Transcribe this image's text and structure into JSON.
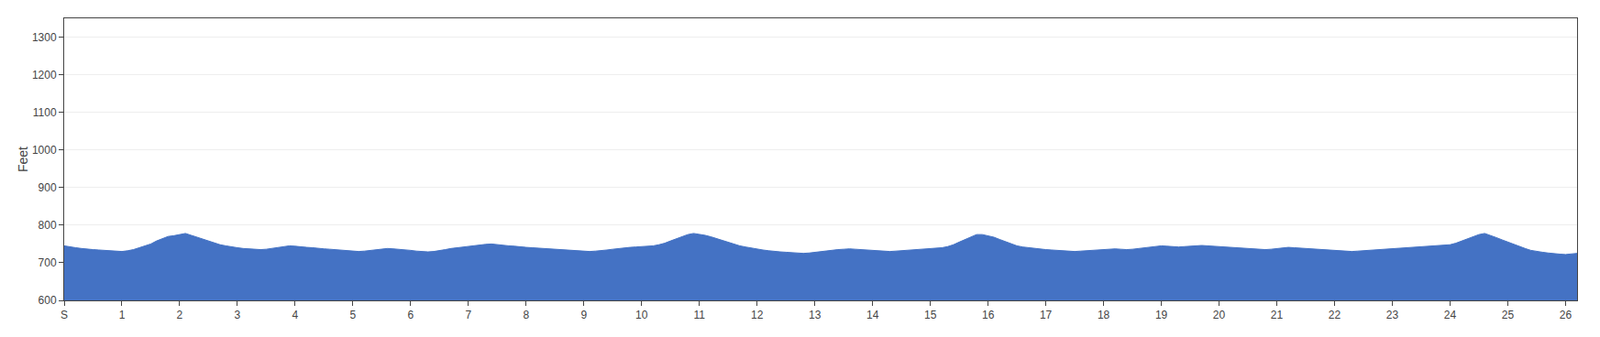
{
  "chart_data": {
    "type": "area",
    "ylabel": "Feet",
    "color": "#4472c4",
    "grid": "y",
    "xlim": [
      0,
      26.2
    ],
    "xticks": [
      {
        "value": 0,
        "label": "S"
      },
      1,
      2,
      3,
      4,
      5,
      6,
      7,
      8,
      9,
      10,
      11,
      12,
      13,
      14,
      15,
      16,
      17,
      18,
      19,
      20,
      21,
      22,
      23,
      24,
      25,
      26
    ],
    "ylim": [
      600,
      1350
    ],
    "yticks": [
      600,
      700,
      800,
      900,
      1000,
      1100,
      1200,
      1300
    ],
    "x": [
      0.0,
      0.1,
      0.2,
      0.3,
      0.4,
      0.5,
      0.6,
      0.7,
      0.8,
      0.9,
      1.0,
      1.1,
      1.2,
      1.3,
      1.4,
      1.5,
      1.6,
      1.7,
      1.8,
      1.9,
      2.0,
      2.1,
      2.2,
      2.3,
      2.4,
      2.5,
      2.6,
      2.7,
      2.8,
      2.9,
      3.0,
      3.1,
      3.2,
      3.3,
      3.4,
      3.5,
      3.6,
      3.7,
      3.8,
      3.9,
      4.0,
      4.1,
      4.2,
      4.3,
      4.4,
      4.5,
      4.6,
      4.7,
      4.8,
      4.9,
      5.0,
      5.1,
      5.2,
      5.3,
      5.4,
      5.5,
      5.6,
      5.7,
      5.8,
      5.9,
      6.0,
      6.1,
      6.2,
      6.3,
      6.4,
      6.5,
      6.6,
      6.7,
      6.8,
      6.9,
      7.0,
      7.1,
      7.2,
      7.3,
      7.4,
      7.5,
      7.6,
      7.7,
      7.8,
      7.9,
      8.0,
      8.1,
      8.2,
      8.3,
      8.4,
      8.5,
      8.6,
      8.7,
      8.8,
      8.9,
      9.0,
      9.1,
      9.2,
      9.3,
      9.4,
      9.5,
      9.6,
      9.7,
      9.8,
      9.9,
      10.0,
      10.1,
      10.2,
      10.3,
      10.4,
      10.5,
      10.6,
      10.7,
      10.8,
      10.9,
      11.0,
      11.1,
      11.2,
      11.3,
      11.4,
      11.5,
      11.6,
      11.7,
      11.8,
      11.9,
      12.0,
      12.1,
      12.2,
      12.3,
      12.4,
      12.5,
      12.6,
      12.7,
      12.8,
      12.9,
      13.0,
      13.1,
      13.2,
      13.3,
      13.4,
      13.5,
      13.6,
      13.7,
      13.8,
      13.9,
      14.0,
      14.1,
      14.2,
      14.3,
      14.4,
      14.5,
      14.6,
      14.7,
      14.8,
      14.9,
      15.0,
      15.1,
      15.2,
      15.3,
      15.4,
      15.5,
      15.6,
      15.7,
      15.8,
      15.9,
      16.0,
      16.1,
      16.2,
      16.3,
      16.4,
      16.5,
      16.6,
      16.7,
      16.8,
      16.9,
      17.0,
      17.1,
      17.2,
      17.3,
      17.4,
      17.5,
      17.6,
      17.7,
      17.8,
      17.9,
      18.0,
      18.1,
      18.2,
      18.3,
      18.4,
      18.5,
      18.6,
      18.7,
      18.8,
      18.9,
      19.0,
      19.1,
      19.2,
      19.3,
      19.4,
      19.5,
      19.6,
      19.7,
      19.8,
      19.9,
      20.0,
      20.1,
      20.2,
      20.3,
      20.4,
      20.5,
      20.6,
      20.7,
      20.8,
      20.9,
      21.0,
      21.1,
      21.2,
      21.3,
      21.4,
      21.5,
      21.6,
      21.7,
      21.8,
      21.9,
      22.0,
      22.1,
      22.2,
      22.3,
      22.4,
      22.5,
      22.6,
      22.7,
      22.8,
      22.9,
      23.0,
      23.1,
      23.2,
      23.3,
      23.4,
      23.5,
      23.6,
      23.7,
      23.8,
      23.9,
      24.0,
      24.1,
      24.2,
      24.3,
      24.4,
      24.5,
      24.6,
      24.7,
      24.8,
      24.9,
      25.0,
      25.1,
      25.2,
      25.3,
      25.4,
      25.5,
      25.6,
      25.7,
      25.8,
      25.9,
      26.0,
      26.2
    ],
    "values": [
      745,
      742,
      740,
      738,
      736,
      735,
      734,
      733,
      732,
      731,
      730,
      732,
      735,
      740,
      745,
      750,
      758,
      765,
      770,
      772,
      775,
      778,
      773,
      768,
      762,
      758,
      752,
      748,
      745,
      742,
      740,
      738,
      737,
      736,
      735,
      736,
      738,
      740,
      743,
      745,
      744,
      742,
      741,
      740,
      738,
      737,
      736,
      735,
      734,
      733,
      732,
      730,
      731,
      733,
      735,
      737,
      738,
      737,
      736,
      735,
      733,
      731,
      730,
      729,
      730,
      732,
      735,
      738,
      740,
      742,
      744,
      746,
      748,
      749,
      750,
      748,
      746,
      745,
      744,
      742,
      741,
      740,
      739,
      738,
      737,
      736,
      735,
      734,
      733,
      732,
      731,
      730,
      731,
      732,
      734,
      736,
      738,
      740,
      741,
      742,
      743,
      744,
      745,
      748,
      752,
      758,
      764,
      770,
      775,
      778,
      776,
      773,
      769,
      764,
      759,
      754,
      749,
      745,
      742,
      739,
      736,
      734,
      732,
      730,
      729,
      728,
      727,
      726,
      725,
      726,
      728,
      730,
      732,
      734,
      735,
      736,
      737,
      736,
      735,
      734,
      733,
      732,
      731,
      730,
      731,
      732,
      733,
      734,
      735,
      736,
      737,
      738,
      740,
      743,
      748,
      755,
      762,
      770,
      775,
      775,
      772,
      768,
      762,
      756,
      750,
      745,
      742,
      740,
      738,
      736,
      735,
      734,
      733,
      732,
      731,
      730,
      731,
      732,
      733,
      734,
      735,
      736,
      737,
      736,
      735,
      736,
      738,
      740,
      742,
      744,
      745,
      744,
      743,
      742,
      743,
      744,
      745,
      746,
      745,
      744,
      743,
      742,
      741,
      740,
      739,
      738,
      737,
      736,
      735,
      736,
      738,
      740,
      741,
      740,
      739,
      738,
      737,
      736,
      735,
      734,
      733,
      732,
      731,
      730,
      731,
      732,
      733,
      734,
      735,
      736,
      737,
      738,
      739,
      740,
      741,
      742,
      743,
      744,
      745,
      746,
      748,
      752,
      758,
      764,
      770,
      775,
      778,
      773,
      767,
      761,
      755,
      749,
      743,
      738,
      733,
      730,
      728,
      726,
      724,
      723,
      722,
      725
    ]
  }
}
